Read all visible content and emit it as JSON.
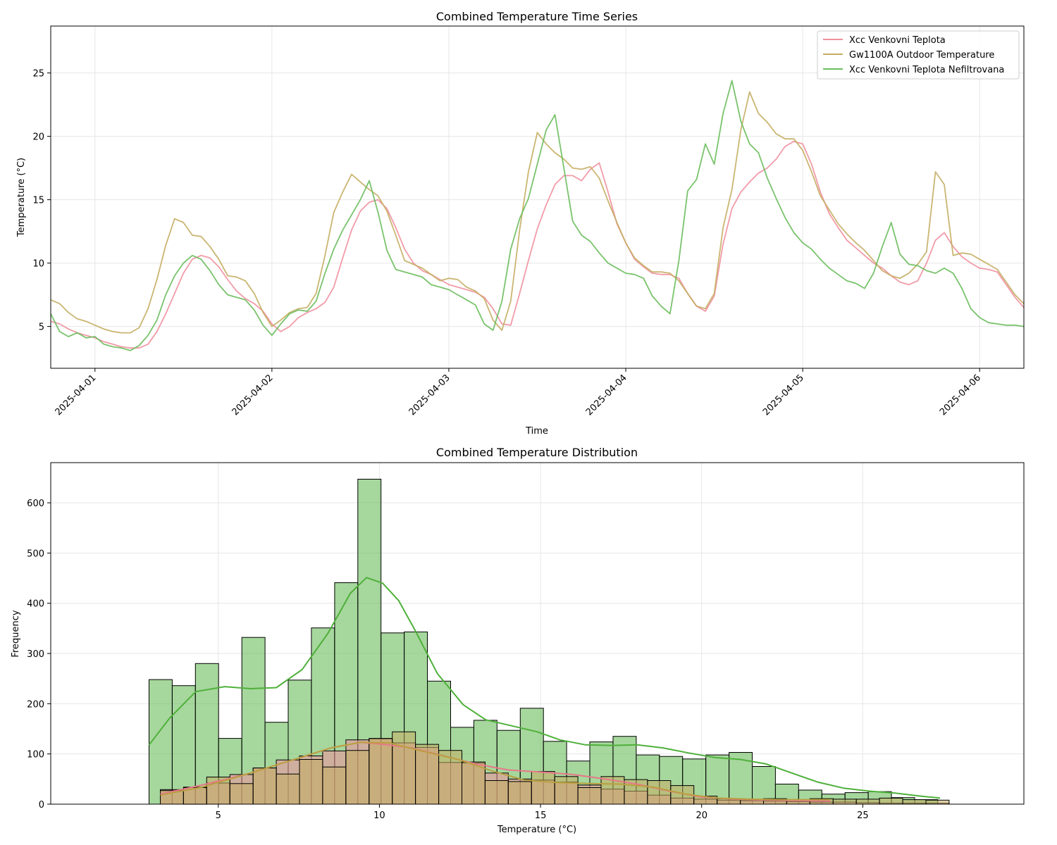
{
  "chart_data": [
    {
      "type": "line",
      "title": "Combined Temperature Time Series",
      "xlabel": "Time",
      "ylabel": "Temperature (°C)",
      "xlim": [
        -0.25,
        5.25
      ],
      "ylim": [
        1.7,
        28.7
      ],
      "x_ticks": [
        0,
        1,
        2,
        3,
        4,
        5
      ],
      "x_tick_labels": [
        "2025-04-01",
        "2025-04-02",
        "2025-04-03",
        "2025-04-04",
        "2025-04-05",
        "2025-04-06"
      ],
      "y_ticks": [
        5,
        10,
        15,
        20,
        25
      ],
      "grid": true,
      "legend_position": "top-right",
      "x_units": "days since 2025-04-01 00:00",
      "series": [
        {
          "name": "Xcc Venkovni Teplota",
          "color": "#f0909e",
          "x": [
            -0.25,
            -0.2,
            -0.15,
            -0.1,
            -0.05,
            0,
            0.05,
            0.1,
            0.15,
            0.2,
            0.25,
            0.3,
            0.35,
            0.4,
            0.45,
            0.5,
            0.55,
            0.6,
            0.65,
            0.7,
            0.75,
            0.8,
            0.85,
            0.9,
            0.95,
            1,
            1.05,
            1.1,
            1.15,
            1.2,
            1.25,
            1.3,
            1.35,
            1.4,
            1.45,
            1.5,
            1.55,
            1.6,
            1.65,
            1.7,
            1.75,
            1.8,
            1.85,
            1.9,
            1.95,
            2,
            2.05,
            2.1,
            2.15,
            2.2,
            2.25,
            2.3,
            2.35,
            2.4,
            2.45,
            2.5,
            2.55,
            2.6,
            2.65,
            2.7,
            2.75,
            2.8,
            2.85,
            2.9,
            2.95,
            3,
            3.05,
            3.1,
            3.15,
            3.2,
            3.25,
            3.3,
            3.35,
            3.4,
            3.45,
            3.5,
            3.55,
            3.6,
            3.65,
            3.7,
            3.75,
            3.8,
            3.85,
            3.9,
            3.95,
            4,
            4.05,
            4.1,
            4.15,
            4.2,
            4.25,
            4.3,
            4.35,
            4.4,
            4.45,
            4.5,
            4.55,
            4.6,
            4.65,
            4.7,
            4.75,
            4.8,
            4.85,
            4.9,
            4.95,
            5,
            5.05,
            5.1,
            5.15,
            5.2,
            5.25
          ],
          "y": [
            5.4,
            5.2,
            4.8,
            4.5,
            4.3,
            4.1,
            3.8,
            3.6,
            3.4,
            3.3,
            3.3,
            3.6,
            4.6,
            6,
            7.6,
            9.2,
            10.3,
            10.6,
            10.4,
            9.7,
            8.7,
            7.8,
            7.2,
            6.8,
            6.2,
            5.2,
            4.6,
            5,
            5.7,
            6.1,
            6.4,
            6.9,
            8.1,
            10.4,
            12.6,
            14.1,
            14.8,
            15,
            14.3,
            12.8,
            11.1,
            10,
            9.4,
            9.1,
            8.7,
            8.3,
            8.1,
            7.9,
            7.7,
            7.3,
            6.4,
            5.2,
            5.1,
            7.6,
            10.2,
            12.7,
            14.6,
            16.2,
            16.9,
            16.9,
            16.5,
            17.4,
            17.9,
            15.6,
            13.1,
            11.6,
            10.3,
            9.7,
            9.2,
            9.1,
            9.1,
            8.8,
            7.6,
            6.6,
            6.2,
            7.4,
            11.5,
            14.3,
            15.6,
            16.4,
            17.1,
            17.5,
            18.2,
            19.2,
            19.6,
            19.4,
            17.8,
            15.6,
            13.9,
            12.8,
            11.8,
            11.2,
            10.6,
            10,
            9.6,
            9,
            8.5,
            8.3,
            8.6,
            10,
            11.8,
            12.4,
            11.3,
            10.5,
            10,
            9.6,
            9.5,
            9.3,
            8.3,
            7.3,
            6.5
          ]
        },
        {
          "name": "Gw1100A Outdoor Temperature",
          "color": "#c4ad62",
          "x": [
            -0.25,
            -0.2,
            -0.15,
            -0.1,
            -0.05,
            0,
            0.05,
            0.1,
            0.15,
            0.2,
            0.25,
            0.3,
            0.35,
            0.4,
            0.45,
            0.5,
            0.55,
            0.6,
            0.65,
            0.7,
            0.75,
            0.8,
            0.85,
            0.9,
            0.95,
            1,
            1.05,
            1.1,
            1.15,
            1.2,
            1.25,
            1.3,
            1.35,
            1.4,
            1.45,
            1.5,
            1.55,
            1.6,
            1.65,
            1.7,
            1.75,
            1.8,
            1.85,
            1.9,
            1.95,
            2,
            2.05,
            2.1,
            2.15,
            2.2,
            2.25,
            2.3,
            2.35,
            2.4,
            2.45,
            2.5,
            2.55,
            2.6,
            2.65,
            2.7,
            2.75,
            2.8,
            2.85,
            2.9,
            2.95,
            3,
            3.05,
            3.1,
            3.15,
            3.2,
            3.25,
            3.3,
            3.35,
            3.4,
            3.45,
            3.5,
            3.55,
            3.6,
            3.65,
            3.7,
            3.75,
            3.8,
            3.85,
            3.9,
            3.95,
            4,
            4.05,
            4.1,
            4.15,
            4.2,
            4.25,
            4.3,
            4.35,
            4.4,
            4.45,
            4.5,
            4.55,
            4.6,
            4.65,
            4.7,
            4.75,
            4.8,
            4.85,
            4.9,
            4.95,
            5,
            5.05,
            5.1,
            5.15,
            5.2,
            5.25
          ],
          "y": [
            7.1,
            6.8,
            6.1,
            5.6,
            5.4,
            5.1,
            4.8,
            4.6,
            4.5,
            4.5,
            4.9,
            6.4,
            8.7,
            11.4,
            13.5,
            13.2,
            12.2,
            12.1,
            11.3,
            10.3,
            9,
            8.9,
            8.6,
            7.6,
            6.1,
            5,
            5.5,
            6.1,
            6.4,
            6.5,
            7.6,
            10.6,
            14,
            15.6,
            17,
            16.4,
            15.8,
            15.3,
            14.1,
            12.2,
            10.2,
            9.9,
            9.6,
            9.1,
            8.6,
            8.8,
            8.7,
            8.1,
            7.8,
            7.2,
            5.5,
            4.7,
            7,
            12.6,
            17.2,
            20.3,
            19.4,
            18.7,
            18.2,
            17.5,
            17.4,
            17.6,
            16.7,
            14.9,
            13.2,
            11.6,
            10.4,
            9.8,
            9.3,
            9.3,
            9.2,
            8.6,
            7.6,
            6.6,
            6.4,
            7.6,
            12.8,
            15.8,
            20.5,
            23.5,
            21.8,
            21.1,
            20.2,
            19.8,
            19.8,
            18.9,
            17.2,
            15.3,
            14.2,
            13.1,
            12.3,
            11.6,
            11,
            10.2,
            9.4,
            9,
            8.8,
            9.2,
            9.9,
            10.9,
            17.2,
            16.2,
            10.6,
            10.8,
            10.7,
            10.3,
            9.9,
            9.5,
            8.5,
            7.5,
            6.8
          ]
        },
        {
          "name": "Xcc Venkovni Teplota Nefiltrovana",
          "color": "#6abd5c",
          "x": [
            -0.25,
            -0.2,
            -0.15,
            -0.1,
            -0.05,
            0,
            0.05,
            0.1,
            0.15,
            0.2,
            0.25,
            0.3,
            0.35,
            0.4,
            0.45,
            0.5,
            0.55,
            0.6,
            0.65,
            0.7,
            0.75,
            0.8,
            0.85,
            0.9,
            0.95,
            1,
            1.05,
            1.1,
            1.15,
            1.2,
            1.25,
            1.3,
            1.35,
            1.4,
            1.45,
            1.5,
            1.55,
            1.6,
            1.65,
            1.7,
            1.75,
            1.8,
            1.85,
            1.9,
            1.95,
            2,
            2.05,
            2.1,
            2.15,
            2.2,
            2.25,
            2.3,
            2.35,
            2.4,
            2.45,
            2.5,
            2.55,
            2.6,
            2.65,
            2.7,
            2.75,
            2.8,
            2.85,
            2.9,
            2.95,
            3,
            3.05,
            3.1,
            3.15,
            3.2,
            3.25,
            3.3,
            3.35,
            3.4,
            3.45,
            3.5,
            3.55,
            3.6,
            3.65,
            3.7,
            3.75,
            3.8,
            3.85,
            3.9,
            3.95,
            4,
            4.05,
            4.1,
            4.15,
            4.2,
            4.25,
            4.3,
            4.35,
            4.4,
            4.45,
            4.5,
            4.55,
            4.6,
            4.65,
            4.7,
            4.75,
            4.8,
            4.85,
            4.9,
            4.95,
            5,
            5.05,
            5.1,
            5.15,
            5.2,
            5.25
          ],
          "y": [
            6,
            4.6,
            4.2,
            4.5,
            4.1,
            4.2,
            3.6,
            3.4,
            3.3,
            3.1,
            3.5,
            4.3,
            5.5,
            7.5,
            9,
            10,
            10.6,
            10.3,
            9.4,
            8.3,
            7.5,
            7.3,
            7.1,
            6.3,
            5.1,
            4.3,
            5.2,
            6,
            6.3,
            6.2,
            7,
            9.2,
            11.1,
            12.6,
            13.8,
            15,
            16.5,
            14,
            11,
            9.5,
            9.3,
            9.1,
            8.9,
            8.3,
            8.1,
            7.9,
            7.5,
            7.1,
            6.7,
            5.2,
            4.7,
            7,
            11.1,
            13.5,
            15.1,
            17.8,
            20.5,
            21.7,
            17.5,
            13.3,
            12.2,
            11.7,
            10.8,
            10,
            9.6,
            9.2,
            9.1,
            8.8,
            7.4,
            6.6,
            6,
            10.2,
            15.7,
            16.6,
            19.4,
            17.8,
            21.8,
            24.4,
            21.2,
            19.4,
            18.7,
            16.7,
            15.1,
            13.6,
            12.4,
            11.6,
            11.1,
            10.3,
            9.6,
            9.1,
            8.6,
            8.4,
            8,
            9.2,
            11.3,
            13.2,
            10.7,
            9.9,
            9.8,
            9.4,
            9.2,
            9.6,
            9.2,
            8,
            6.4,
            5.7,
            5.3,
            5.2,
            5.1,
            5.1,
            5
          ]
        }
      ]
    },
    {
      "type": "histogram",
      "title": "Combined Temperature Distribution",
      "xlabel": "Temperature (°C)",
      "ylabel": "Frequency",
      "xlim": [
        -0.2,
        30.0
      ],
      "ylim": [
        0,
        680
      ],
      "x_ticks": [
        5,
        10,
        15,
        20,
        25
      ],
      "y_ticks": [
        0,
        100,
        200,
        300,
        400,
        500,
        600
      ],
      "grid": true,
      "series": [
        {
          "name": "Xcc Venkovni Teplota Nefiltrovana",
          "color": "#6abd5c",
          "bin_width": 0.72,
          "bin_start": 2.85,
          "counts": [
            248,
            236,
            280,
            131,
            332,
            163,
            247,
            351,
            441,
            647,
            341,
            343,
            245,
            153,
            167,
            147,
            191,
            125,
            86,
            124,
            135,
            98,
            95,
            90,
            98,
            103,
            75,
            40,
            28,
            20,
            23,
            25,
            13,
            9
          ],
          "kde_x": [
            2.85,
            3.5,
            4.3,
            5.2,
            6.0,
            6.8,
            7.6,
            8.4,
            9.1,
            9.6,
            10.1,
            10.6,
            11.1,
            11.8,
            12.6,
            13.3,
            14.1,
            14.9,
            15.6,
            16.4,
            17.2,
            18.0,
            18.8,
            19.6,
            20.4,
            21.2,
            22.0,
            22.8,
            23.6,
            24.4,
            25.2,
            26.0,
            26.8,
            27.4
          ],
          "kde_y": [
            118,
            172,
            224,
            234,
            230,
            232,
            268,
            340,
            420,
            451,
            440,
            405,
            347,
            260,
            198,
            168,
            156,
            144,
            128,
            118,
            117,
            118,
            112,
            102,
            93,
            89,
            80,
            62,
            44,
            32,
            26,
            22,
            16,
            12
          ]
        },
        {
          "name": "Xcc Venkovni Teplota",
          "color": "#f0909e",
          "bin_width": 0.72,
          "bin_start": 3.2,
          "counts": [
            29,
            34,
            42,
            59,
            72,
            88,
            96,
            106,
            128,
            130,
            122,
            113,
            83,
            82,
            62,
            50,
            48,
            44,
            38,
            30,
            26,
            18,
            12,
            10,
            8,
            7,
            6,
            5,
            4,
            4,
            3,
            2,
            2,
            2
          ],
          "kde_x": [
            3.2,
            4.5,
            6.0,
            7.5,
            8.5,
            9.4,
            10.0,
            11.0,
            12.0,
            13.0,
            14.0,
            15.0,
            16.0,
            17.0,
            18.0,
            19.0,
            20.0,
            21.0,
            22.0,
            23.0,
            24.0
          ],
          "kde_y": [
            20,
            38,
            62,
            92,
            112,
            123,
            120,
            112,
            96,
            80,
            68,
            64,
            59,
            50,
            40,
            26,
            14,
            10,
            8,
            7,
            6
          ]
        },
        {
          "name": "Gw1100A Outdoor Temperature",
          "color": "#c4ad62",
          "bin_width": 0.72,
          "bin_start": 3.2,
          "counts": [
            27,
            33,
            54,
            41,
            72,
            60,
            89,
            74,
            107,
            131,
            144,
            119,
            107,
            84,
            47,
            45,
            65,
            55,
            33,
            55,
            49,
            47,
            37,
            16,
            11,
            9,
            11,
            9,
            11,
            10,
            10,
            12,
            9,
            8
          ],
          "kde_x": [
            3.2,
            4.5,
            6.0,
            7.5,
            8.5,
            9.4,
            10.3,
            11.3,
            12.5,
            13.5,
            14.5,
            15.5,
            16.5,
            17.5,
            18.5,
            19.5,
            20.5,
            21.5,
            22.5,
            23.5,
            24.0
          ],
          "kde_y": [
            18,
            34,
            62,
            92,
            112,
            123,
            122,
            106,
            88,
            66,
            48,
            43,
            41,
            40,
            34,
            20,
            12,
            10,
            9,
            9,
            9
          ]
        }
      ]
    }
  ]
}
